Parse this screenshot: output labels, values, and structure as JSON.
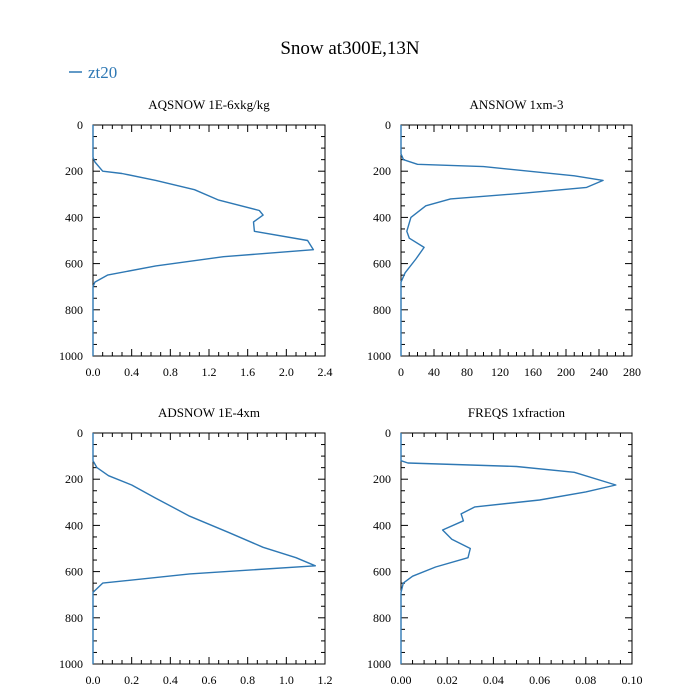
{
  "title": "Snow at300E,13N",
  "legend": {
    "label": "zt20",
    "color": "#2e78b4"
  },
  "line_color": "#2e78b4",
  "chart_data": [
    {
      "type": "line",
      "title": "AQSNOW  1E-6xkg/kg",
      "xlim": [
        0,
        2.4
      ],
      "ylim": [
        1000,
        0
      ],
      "xticks": [
        0.0,
        0.4,
        0.8,
        1.2,
        1.6,
        2.0,
        2.4
      ],
      "xtick_labels": [
        "0.0",
        "0.4",
        "0.8",
        "1.2",
        "1.6",
        "2.0",
        "2.4"
      ],
      "yticks": [
        0,
        200,
        400,
        600,
        800,
        1000
      ],
      "ytick_labels": [
        "0",
        "200",
        "400",
        "600",
        "800",
        "1000"
      ],
      "series": [
        {
          "name": "zt20",
          "x": [
            0,
            0,
            0.02,
            0.1,
            0.3,
            0.65,
            1.05,
            1.3,
            1.72,
            1.76,
            1.66,
            1.67,
            2.22,
            2.28,
            1.35,
            0.65,
            0.15,
            0.02,
            0,
            0
          ],
          "y": [
            0,
            140,
            160,
            200,
            210,
            240,
            280,
            325,
            370,
            390,
            420,
            460,
            500,
            540,
            570,
            610,
            650,
            680,
            700,
            1000
          ]
        }
      ]
    },
    {
      "type": "line",
      "title": "ANSNOW  1xm-3",
      "xlim": [
        0,
        280
      ],
      "ylim": [
        1000,
        0
      ],
      "xticks": [
        0,
        40,
        80,
        120,
        160,
        200,
        240,
        280
      ],
      "xtick_labels": [
        "0",
        "40",
        "80",
        "120",
        "160",
        "200",
        "240",
        "280"
      ],
      "yticks": [
        0,
        200,
        400,
        600,
        800,
        1000
      ],
      "ytick_labels": [
        "0",
        "200",
        "400",
        "600",
        "800",
        "1000"
      ],
      "series": [
        {
          "name": "zt20",
          "x": [
            0,
            0,
            3,
            20,
            100,
            210,
            245,
            225,
            150,
            60,
            30,
            12,
            7,
            10,
            28,
            18,
            5,
            0,
            0
          ],
          "y": [
            0,
            125,
            150,
            170,
            180,
            220,
            240,
            270,
            295,
            320,
            350,
            400,
            460,
            490,
            530,
            580,
            640,
            680,
            1000
          ]
        }
      ]
    },
    {
      "type": "line",
      "title": "ADSNOW  1E-4xm",
      "xlim": [
        0,
        1.2
      ],
      "ylim": [
        1000,
        0
      ],
      "xticks": [
        0.0,
        0.2,
        0.4,
        0.6,
        0.8,
        1.0,
        1.2
      ],
      "xtick_labels": [
        "0.0",
        "0.2",
        "0.4",
        "0.6",
        "0.8",
        "1.0",
        "1.2"
      ],
      "yticks": [
        0,
        200,
        400,
        600,
        800,
        1000
      ],
      "ytick_labels": [
        "0",
        "200",
        "400",
        "600",
        "800",
        "1000"
      ],
      "series": [
        {
          "name": "zt20",
          "x": [
            0,
            0,
            0.02,
            0.08,
            0.2,
            0.32,
            0.5,
            0.7,
            0.88,
            1.05,
            1.15,
            0.5,
            0.05,
            0,
            0
          ],
          "y": [
            0,
            120,
            150,
            185,
            225,
            280,
            360,
            430,
            495,
            540,
            575,
            610,
            650,
            690,
            1000
          ]
        }
      ]
    },
    {
      "type": "line",
      "title": "FREQS  1xfraction",
      "xlim": [
        0,
        0.1
      ],
      "ylim": [
        1000,
        0
      ],
      "xticks": [
        0.0,
        0.02,
        0.04,
        0.06,
        0.08,
        0.1
      ],
      "xtick_labels": [
        "0.00",
        "0.02",
        "0.04",
        "0.06",
        "0.08",
        "0.10"
      ],
      "yticks": [
        0,
        200,
        400,
        600,
        800,
        1000
      ],
      "ytick_labels": [
        "0",
        "200",
        "400",
        "600",
        "800",
        "1000"
      ],
      "series": [
        {
          "name": "zt20",
          "x": [
            0,
            0,
            0.003,
            0.05,
            0.075,
            0.093,
            0.08,
            0.06,
            0.032,
            0.026,
            0.027,
            0.018,
            0.022,
            0.03,
            0.029,
            0.015,
            0.005,
            0.001,
            0,
            0
          ],
          "y": [
            0,
            120,
            130,
            145,
            170,
            225,
            255,
            290,
            320,
            350,
            380,
            420,
            460,
            500,
            540,
            580,
            620,
            650,
            690,
            1000
          ]
        }
      ]
    }
  ]
}
